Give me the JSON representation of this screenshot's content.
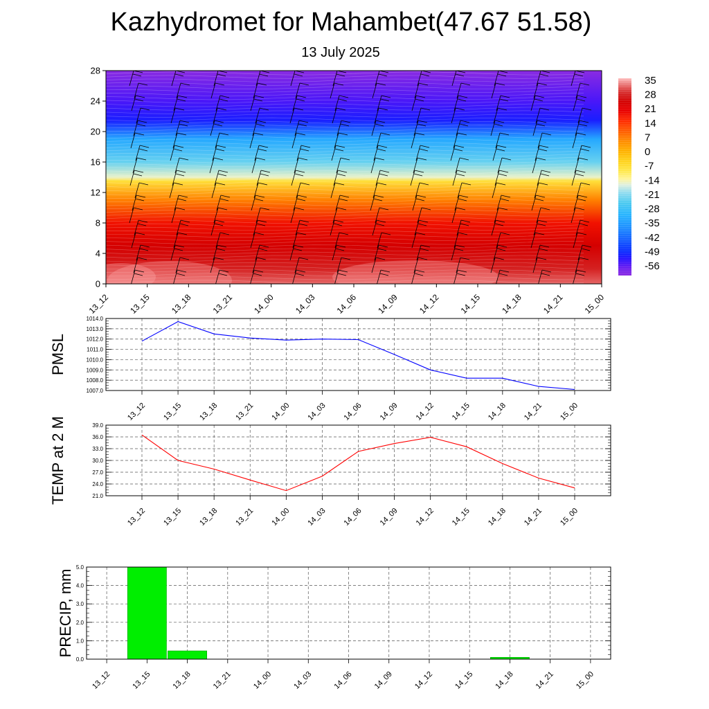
{
  "title": "Kazhydromet for Mahambet(47.67 51.58)",
  "subtitle": "13 July 2025",
  "colors": {
    "pmsl_line": "#0000ff",
    "temp_line": "#ff0000",
    "precip_bar": "#00ee00",
    "grid": "#555555"
  },
  "chart_data": [
    {
      "type": "heatmap",
      "name_shown": "",
      "x_ticks": [
        "13_12",
        "13_15",
        "13_18",
        "13_21",
        "14_00",
        "14_03",
        "14_06",
        "14_09",
        "14_12",
        "14_15",
        "14_18",
        "14_21",
        "15_00"
      ],
      "y_ticks": [
        "0",
        "4",
        "8",
        "12",
        "16",
        "20",
        "24",
        "28"
      ],
      "ylim": [
        0,
        28
      ],
      "colorbar_ticks": [
        "35",
        "28",
        "21",
        "14",
        "7",
        "0",
        "-7",
        "-14",
        "-21",
        "-28",
        "-35",
        "-42",
        "-49",
        "-56"
      ],
      "colorbar_range": [
        -60,
        38
      ],
      "level_temperature_profile": [
        {
          "level": 0,
          "value": 34
        },
        {
          "level": 2,
          "value": 30
        },
        {
          "level": 5,
          "value": 26
        },
        {
          "level": 8,
          "value": 20
        },
        {
          "level": 11,
          "value": 8
        },
        {
          "level": 13.5,
          "value": -6
        },
        {
          "level": 14,
          "value": -14
        },
        {
          "level": 16,
          "value": -22
        },
        {
          "level": 19,
          "value": -32
        },
        {
          "level": 21.5,
          "value": -50
        },
        {
          "level": 24,
          "value": -54
        },
        {
          "level": 28,
          "value": -60
        }
      ],
      "wind_barbs": true
    },
    {
      "type": "line",
      "ylabel": "PMSL",
      "categories": [
        "13_12",
        "13_15",
        "13_18",
        "13_21",
        "14_00",
        "14_03",
        "14_06",
        "14_09",
        "14_12",
        "14_15",
        "14_18",
        "14_21",
        "15_00"
      ],
      "values": [
        1011.8,
        1013.7,
        1012.5,
        1012.1,
        1011.9,
        1012.0,
        1011.95,
        1010.5,
        1009.0,
        1008.2,
        1008.2,
        1007.4,
        1007.1
      ],
      "ylim": [
        1007.0,
        1014.0
      ],
      "y_ticks": [
        "1014.0",
        "1013.0",
        "1012.0",
        "1011.0",
        "1010.0",
        "1009.0",
        "1008.0",
        "1007.0"
      ],
      "grid": true
    },
    {
      "type": "line",
      "ylabel": "TEMP at 2 M",
      "categories": [
        "13_12",
        "13_15",
        "13_18",
        "13_21",
        "14_00",
        "14_03",
        "14_06",
        "14_09",
        "14_12",
        "14_15",
        "14_18",
        "14_21",
        "15_00"
      ],
      "values": [
        36.5,
        30.0,
        27.8,
        25.0,
        22.3,
        26.0,
        32.3,
        34.3,
        35.9,
        33.5,
        29.2,
        25.5,
        23.0
      ],
      "ylim": [
        21.0,
        39.0
      ],
      "y_ticks": [
        "39.0",
        "36.0",
        "33.0",
        "30.0",
        "27.0",
        "24.0",
        "21.0"
      ],
      "grid": true
    },
    {
      "type": "bar",
      "ylabel": "PRECIP, mm",
      "categories": [
        "13_12",
        "13_15",
        "13_18",
        "13_21",
        "14_00",
        "14_03",
        "14_06",
        "14_09",
        "14_12",
        "14_15",
        "14_18",
        "14_21",
        "15_00"
      ],
      "values": [
        0,
        5.0,
        0.45,
        0,
        0,
        0,
        0,
        0,
        0,
        0,
        0.1,
        0,
        0
      ],
      "ylim": [
        0.0,
        5.0
      ],
      "y_ticks": [
        "5.0",
        "4.0",
        "3.0",
        "2.0",
        "1.0",
        "0.0"
      ],
      "grid": true
    }
  ]
}
